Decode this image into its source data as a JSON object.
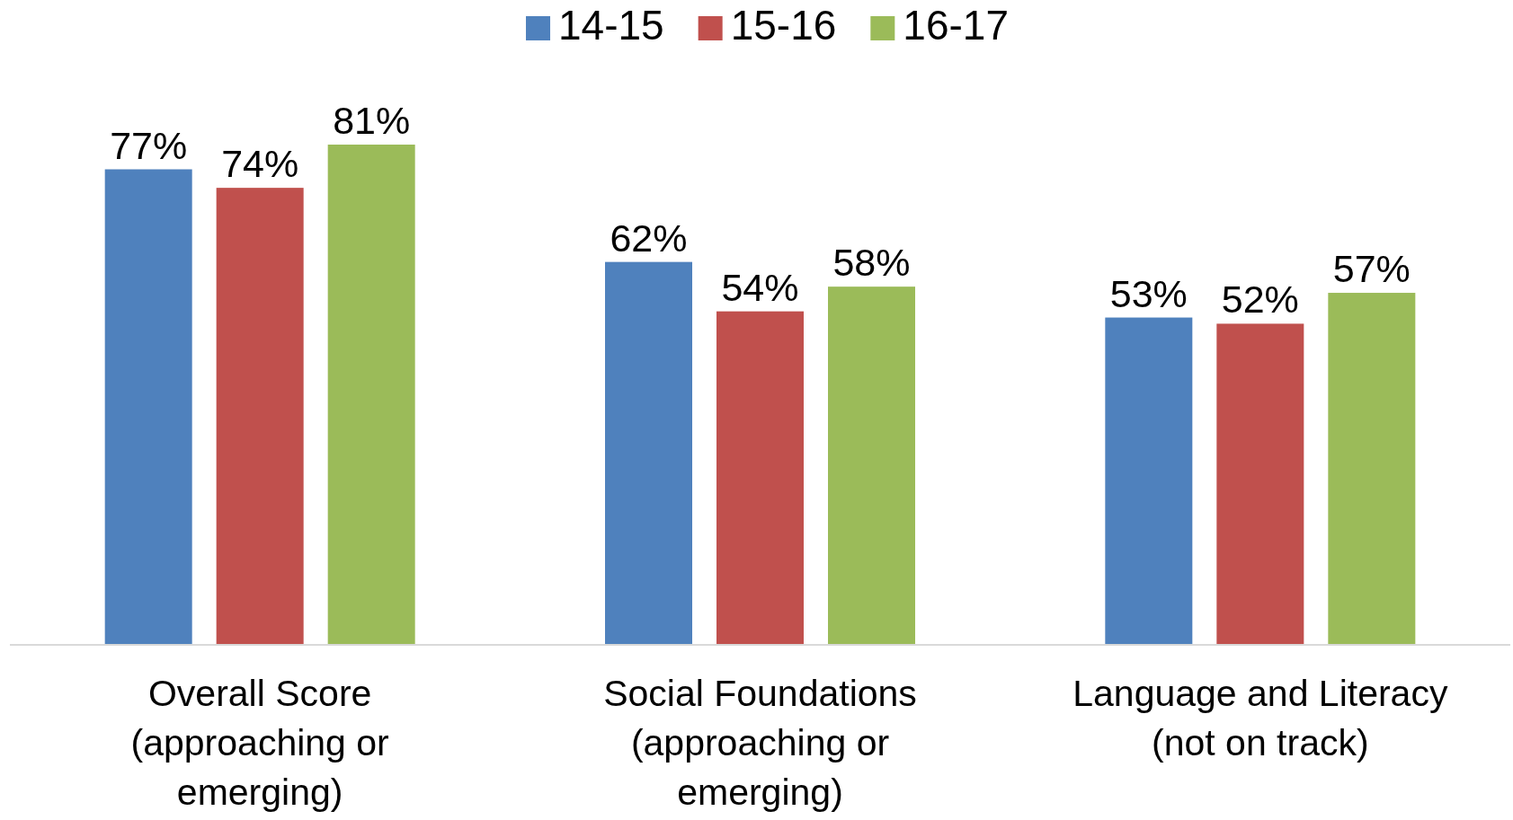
{
  "chart_data": {
    "type": "bar",
    "categories": [
      "Overall Score (approaching or emerging)",
      "Social Foundations (approaching or emerging)",
      "Language and Literacy (not on track)"
    ],
    "series": [
      {
        "name": "14-15",
        "color": "#4f81bd",
        "values": [
          77,
          62,
          53
        ],
        "value_labels": [
          "77%",
          "62%",
          "53%"
        ]
      },
      {
        "name": "15-16",
        "color": "#c0504d",
        "values": [
          74,
          54,
          52
        ],
        "value_labels": [
          "74%",
          "54%",
          "52%"
        ]
      },
      {
        "name": "16-17",
        "color": "#9bbb59",
        "values": [
          81,
          58,
          57
        ],
        "value_labels": [
          "81%",
          "58%",
          "57%"
        ]
      }
    ],
    "legend": "top"
  }
}
